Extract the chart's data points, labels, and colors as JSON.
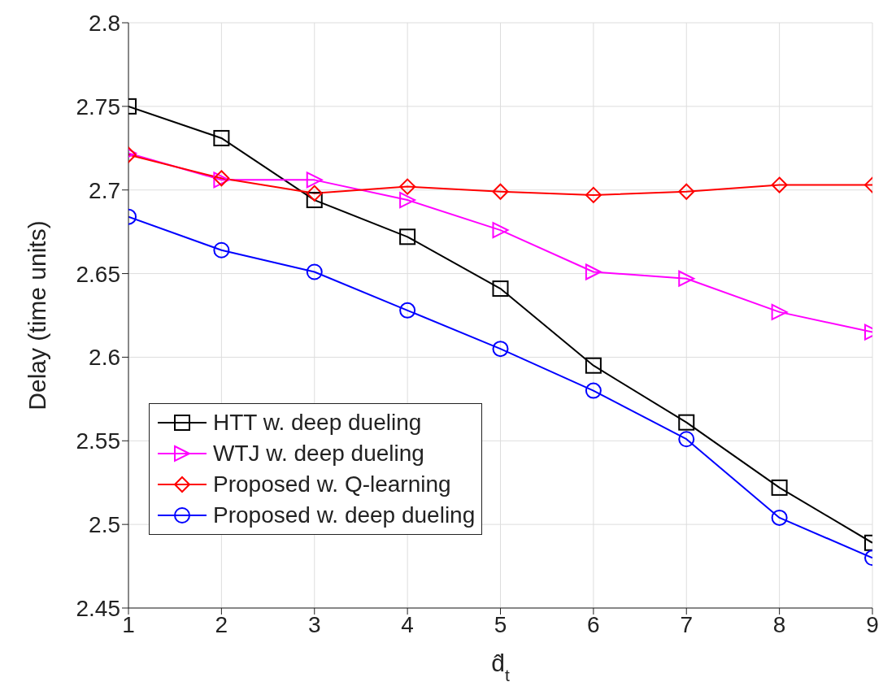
{
  "chart_data": {
    "type": "line",
    "xlabel": "d̂$_{t}$",
    "ylabel": "Delay (time units)",
    "x": [
      1,
      2,
      3,
      4,
      5,
      6,
      7,
      8,
      9
    ],
    "xlim": [
      1,
      9
    ],
    "xticks": [
      1,
      2,
      3,
      4,
      5,
      6,
      7,
      8,
      9
    ],
    "ylim": [
      2.45,
      2.8
    ],
    "yticks": [
      2.45,
      2.5,
      2.55,
      2.6,
      2.65,
      2.7,
      2.75,
      2.8
    ],
    "grid": true,
    "legend": "bottom left",
    "line_style": "solid",
    "series": [
      {
        "name": "HTT w. deep dueling",
        "color": "#000000",
        "marker": "square",
        "values": [
          2.75,
          2.731,
          2.694,
          2.672,
          2.641,
          2.595,
          2.561,
          2.522,
          2.489
        ]
      },
      {
        "name": "WTJ w. deep dueling",
        "color": "#ff00ff",
        "marker": "triangle",
        "values": [
          2.722,
          2.706,
          2.706,
          2.694,
          2.676,
          2.651,
          2.647,
          2.627,
          2.615
        ]
      },
      {
        "name": "Proposed w. Q-learning",
        "color": "#ff0000",
        "marker": "diamond",
        "values": [
          2.721,
          2.707,
          2.698,
          2.702,
          2.699,
          2.697,
          2.699,
          2.703,
          2.703
        ]
      },
      {
        "name": "Proposed w. deep dueling",
        "color": "#0000ff",
        "marker": "circle",
        "values": [
          2.684,
          2.664,
          2.651,
          2.628,
          2.605,
          2.58,
          2.551,
          2.504,
          2.48
        ]
      }
    ]
  }
}
